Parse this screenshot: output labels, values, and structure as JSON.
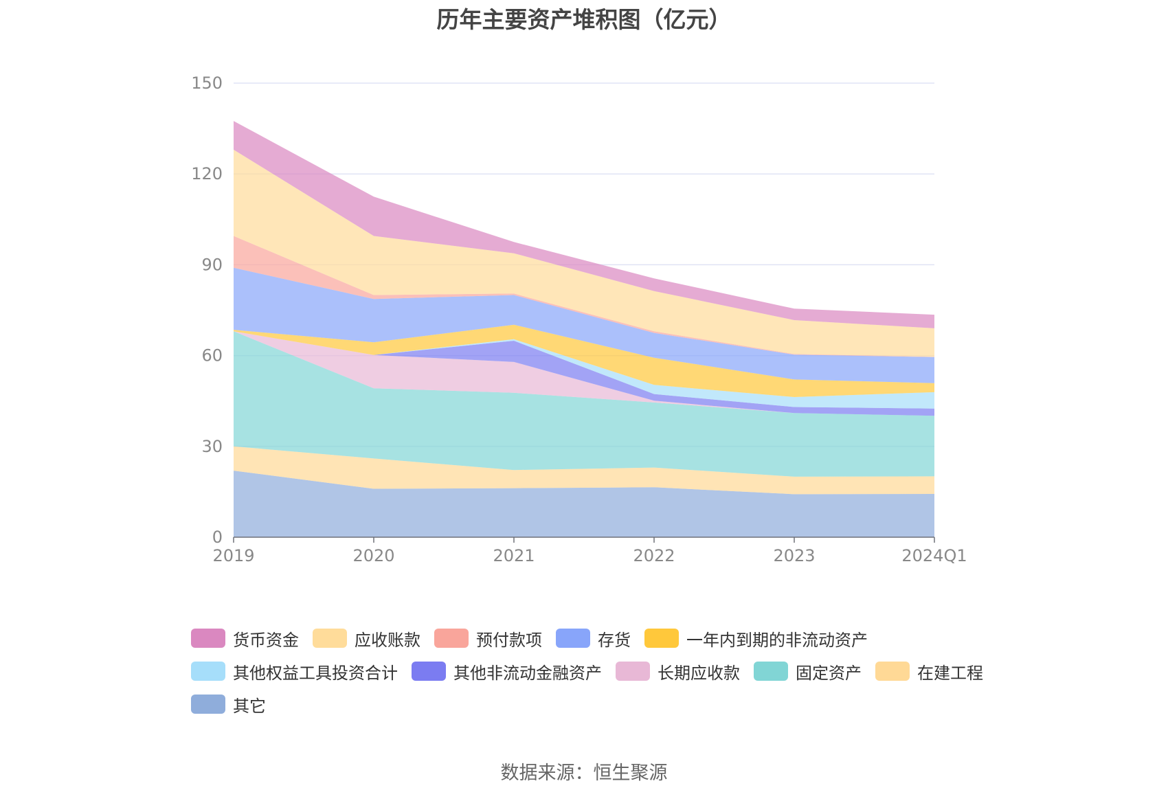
{
  "chart_data": {
    "type": "area",
    "stacked": true,
    "title": "历年主要资产堆积图（亿元）",
    "xlabel": "",
    "ylabel": "",
    "categories": [
      "2019",
      "2020",
      "2021",
      "2022",
      "2023",
      "2024Q1"
    ],
    "ylim": [
      0,
      150
    ],
    "yticks": [
      "0",
      "30",
      "60",
      "90",
      "120",
      "150"
    ],
    "grid": true,
    "legend_position": "bottom",
    "series": [
      {
        "name": "其它",
        "color": "#8FADDB",
        "values": [
          22,
          16,
          16.2,
          16.5,
          14.2,
          14.3
        ]
      },
      {
        "name": "在建工程",
        "color": "#FFD996",
        "values": [
          8,
          10,
          6,
          6.5,
          5.8,
          5.8
        ]
      },
      {
        "name": "固定资产",
        "color": "#81D5D5",
        "values": [
          38,
          23.2,
          25.5,
          21.5,
          21,
          20
        ]
      },
      {
        "name": "长期应收款",
        "color": "#E8B8D6",
        "values": [
          0,
          11,
          10.2,
          0.6,
          0,
          0
        ]
      },
      {
        "name": "其他非流动金融资产",
        "color": "#7B7CF1",
        "values": [
          0,
          0,
          7,
          2.2,
          2,
          2.4
        ]
      },
      {
        "name": "其他权益工具投资合计",
        "color": "#A6DEFA",
        "values": [
          0,
          0,
          0.5,
          3,
          3.3,
          5.4
        ]
      },
      {
        "name": "一年内到期的非流动资产",
        "color": "#FFC83B",
        "values": [
          0.5,
          4.2,
          4.8,
          9,
          5.8,
          3
        ]
      },
      {
        "name": "存货",
        "color": "#88A5FA",
        "values": [
          20.5,
          14.3,
          9.8,
          8.2,
          8.2,
          8.6
        ]
      },
      {
        "name": "预付款项",
        "color": "#F9A59B",
        "values": [
          10.5,
          1.3,
          0.5,
          0.5,
          0.2,
          0.1
        ]
      },
      {
        "name": "应收账款",
        "color": "#FFDC9A",
        "values": [
          28.5,
          19.5,
          13.3,
          13.3,
          11.2,
          9.4
        ]
      },
      {
        "name": "货币资金",
        "color": "#DA88C0",
        "values": [
          9.5,
          13,
          3.7,
          4.2,
          3.8,
          4.5
        ]
      }
    ]
  },
  "legend": [
    {
      "label": "货币资金",
      "color": "#DA88C0"
    },
    {
      "label": "应收账款",
      "color": "#FFDC9A"
    },
    {
      "label": "预付款项",
      "color": "#F9A59B"
    },
    {
      "label": "存货",
      "color": "#88A5FA"
    },
    {
      "label": "一年内到期的非流动资产",
      "color": "#FFC83B"
    },
    {
      "label": "其他权益工具投资合计",
      "color": "#A6DEFA"
    },
    {
      "label": "其他非流动金融资产",
      "color": "#7B7CF1"
    },
    {
      "label": "长期应收款",
      "color": "#E8B8D6"
    },
    {
      "label": "固定资产",
      "color": "#81D5D5"
    },
    {
      "label": "在建工程",
      "color": "#FFD996"
    },
    {
      "label": "其它",
      "color": "#8FADDB"
    }
  ],
  "source": "数据来源：恒生聚源"
}
